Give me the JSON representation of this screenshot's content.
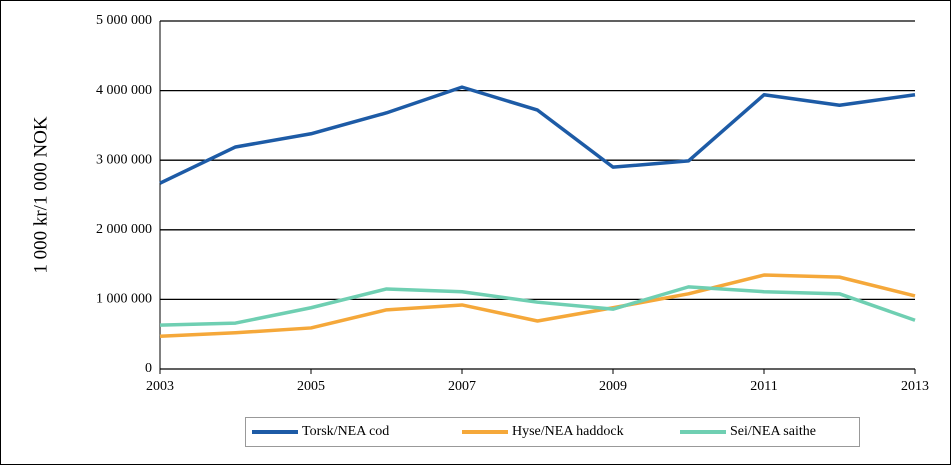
{
  "chart_data": {
    "type": "line",
    "y_label": "1 000 kr/1 000 NOK",
    "x": [
      2003,
      2004,
      2005,
      2006,
      2007,
      2008,
      2009,
      2010,
      2011,
      2012,
      2013
    ],
    "series": [
      {
        "name": "Torsk/NEA cod",
        "color": "#1d5ba6",
        "values": [
          2670000,
          3190000,
          3380000,
          3680000,
          4050000,
          3720000,
          2900000,
          2990000,
          3940000,
          3790000,
          3940000
        ]
      },
      {
        "name": "Hyse/NEA haddock",
        "color": "#f5a83a",
        "values": [
          470000,
          520000,
          590000,
          850000,
          920000,
          690000,
          880000,
          1080000,
          1350000,
          1320000,
          1050000
        ]
      },
      {
        "name": "Sei/NEA saithe",
        "color": "#6fcfb2",
        "values": [
          630000,
          660000,
          880000,
          1150000,
          1110000,
          960000,
          860000,
          1180000,
          1110000,
          1080000,
          700000
        ]
      }
    ],
    "xlim": [
      2003,
      2013
    ],
    "xticks": [
      2003,
      2005,
      2007,
      2009,
      2011,
      2013
    ],
    "ylim": [
      0,
      5000000
    ],
    "yticks": [
      0,
      {
        "value": 1000000,
        "label": "1 000 000"
      },
      {
        "value": 2000000,
        "label": "2 000 000"
      },
      {
        "value": 3000000,
        "label": "3 000 000"
      },
      {
        "value": 4000000,
        "label": "4 000 000"
      },
      {
        "value": 5000000,
        "label": "5 000 000"
      }
    ],
    "grid": true
  }
}
